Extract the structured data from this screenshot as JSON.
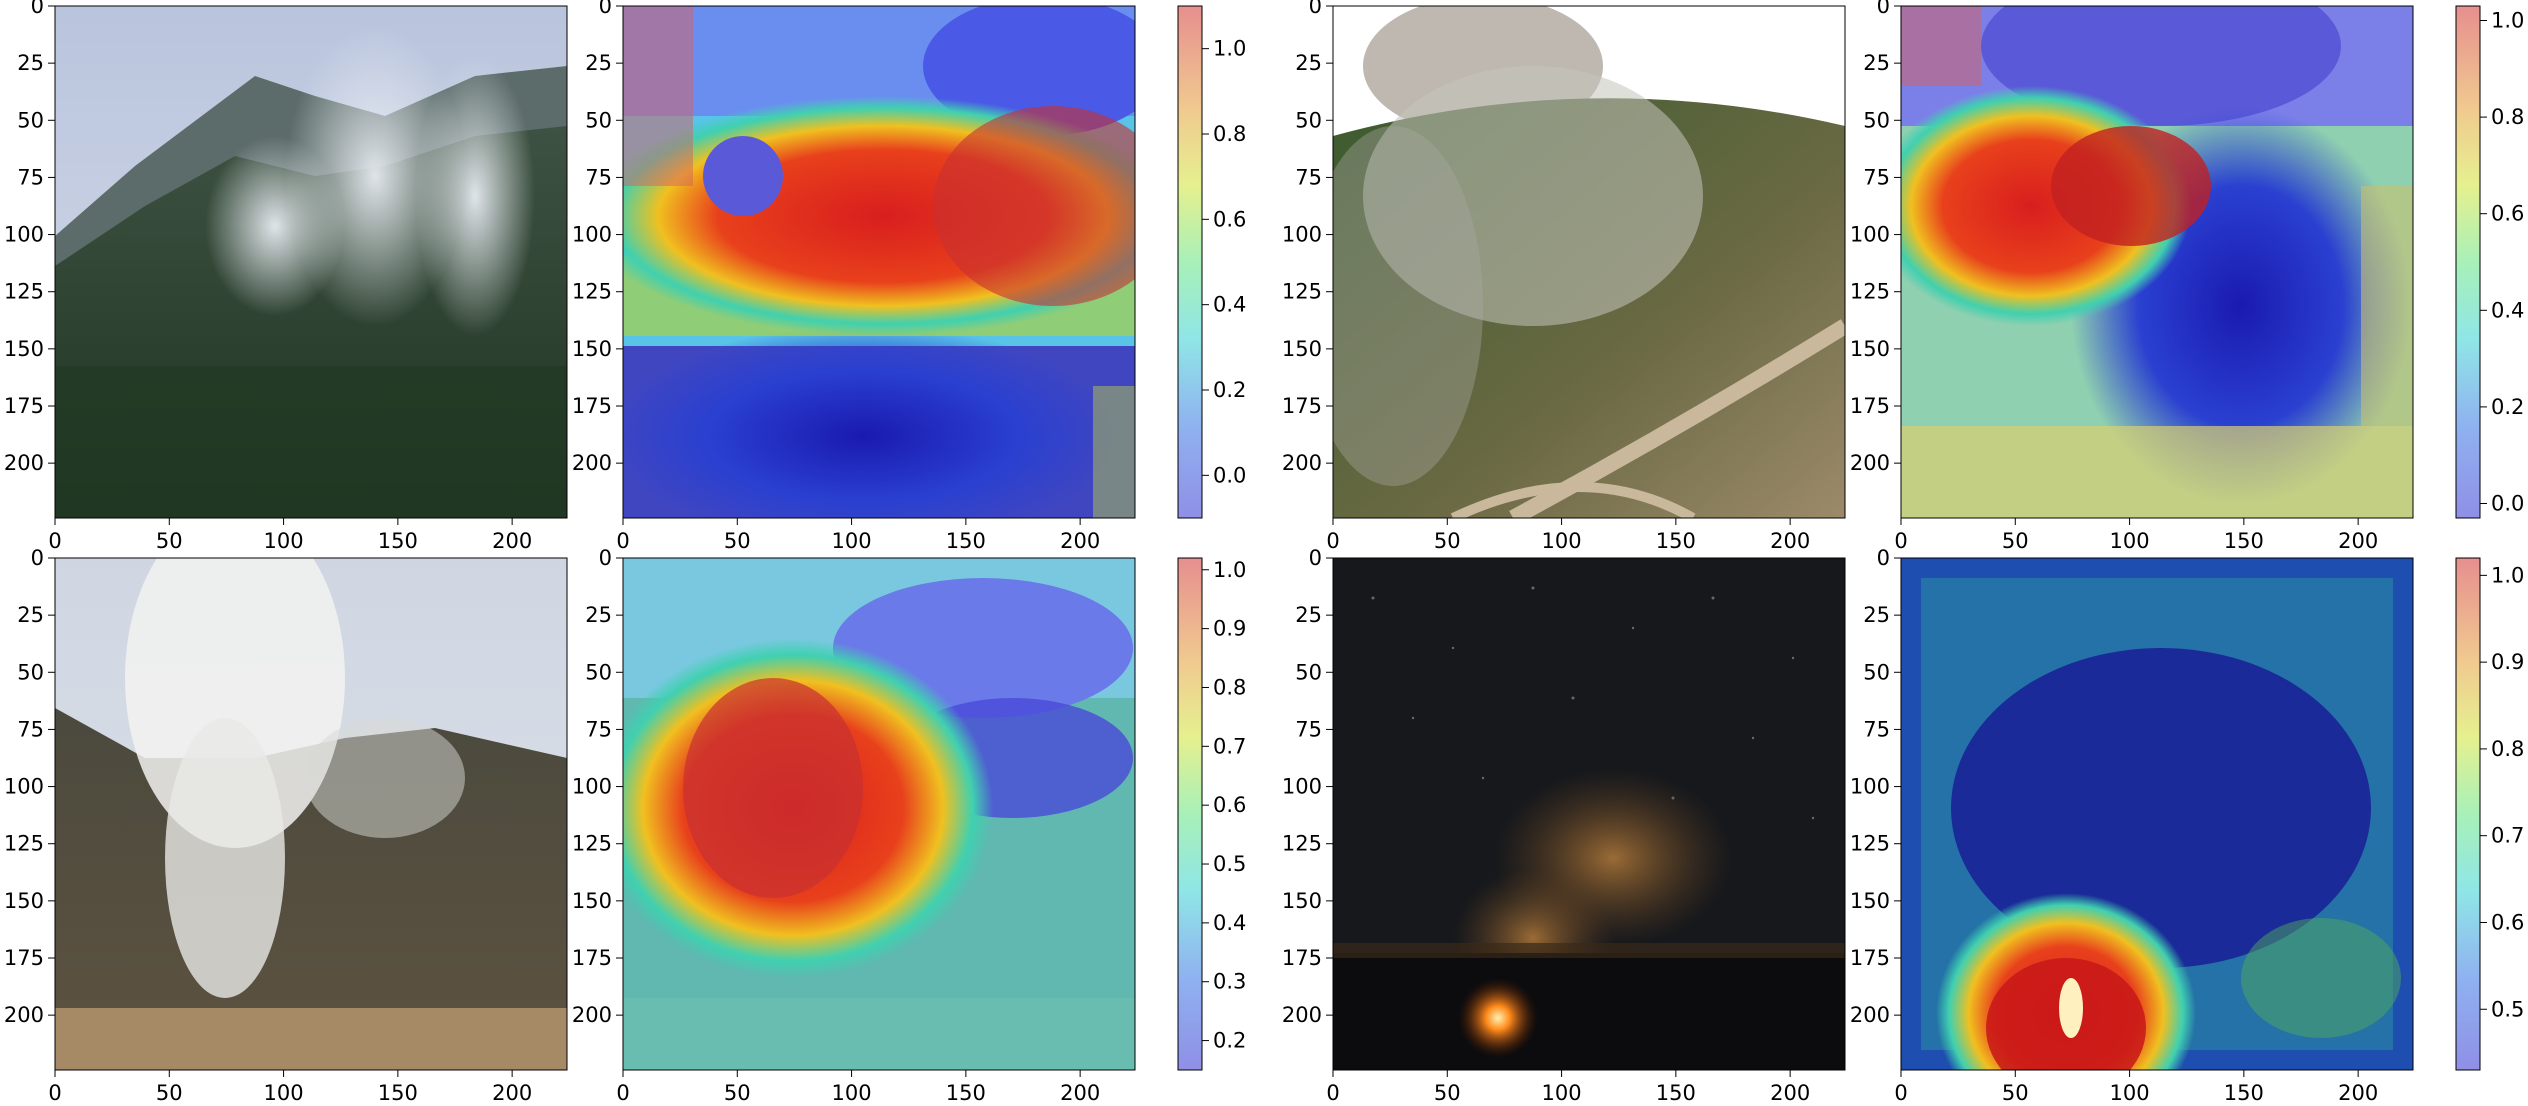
{
  "figure": {
    "layout": "2 rows x 2 pairs: original image + Grad-CAM style heatmap overlay with colorbar",
    "axis_ticks": [
      "0",
      "50",
      "100",
      "150",
      "200"
    ],
    "y_axis_ticks": [
      "0",
      "25",
      "50",
      "75",
      "100",
      "125",
      "150",
      "175",
      "200"
    ]
  },
  "chart_data": [
    {
      "type": "heatmap",
      "panel": "row1-pair1",
      "scene": "smoky forested mountain, daytime",
      "xlim": [
        0,
        224
      ],
      "ylim": [
        224,
        0
      ],
      "colormap": "jet",
      "colorbar_ticks": [
        "0.0",
        "0.2",
        "0.4",
        "0.6",
        "0.8",
        "1.0"
      ],
      "colorbar_range": [
        -0.1,
        1.1
      ]
    },
    {
      "type": "heatmap",
      "panel": "row1-pair2",
      "scene": "forest fire viewed from drone, wide angle",
      "xlim": [
        0,
        224
      ],
      "ylim": [
        224,
        0
      ],
      "colormap": "jet",
      "colorbar_ticks": [
        "0.0",
        "0.2",
        "0.4",
        "0.6",
        "0.8",
        "1.0"
      ],
      "colorbar_range": [
        -0.03,
        1.03
      ]
    },
    {
      "type": "heatmap",
      "panel": "row2-pair1",
      "scene": "smoke rising from hillside",
      "xlim": [
        0,
        224
      ],
      "ylim": [
        224,
        0
      ],
      "colormap": "jet",
      "colorbar_ticks": [
        "0.2",
        "0.3",
        "0.4",
        "0.5",
        "0.6",
        "0.7",
        "0.8",
        "0.9",
        "1.0"
      ],
      "colorbar_range": [
        0.15,
        1.02
      ]
    },
    {
      "type": "heatmap",
      "panel": "row2-pair2",
      "scene": "night fire glow under starry sky",
      "xlim": [
        0,
        224
      ],
      "ylim": [
        224,
        0
      ],
      "colormap": "jet",
      "colorbar_ticks": [
        "0.5",
        "0.6",
        "0.7",
        "0.8",
        "0.9",
        "1.0"
      ],
      "colorbar_range": [
        0.43,
        1.02
      ]
    }
  ]
}
